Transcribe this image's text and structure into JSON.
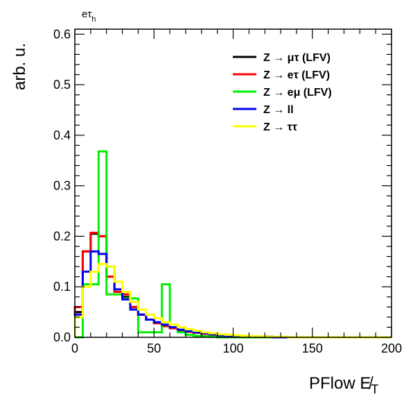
{
  "chart_data": {
    "type": "histogram",
    "channel_label": "eτ",
    "channel_sub": "h",
    "xlabel": "PFlow E̸",
    "xlabel_sub": "T",
    "ylabel": "arb. u.",
    "xlim": [
      0,
      200
    ],
    "ylim": [
      0,
      0.61
    ],
    "x_ticks": [
      0,
      50,
      100,
      150,
      200
    ],
    "x_tick_labels": [
      "0",
      "50",
      "100",
      "150",
      "200"
    ],
    "y_ticks": [
      0,
      0.1,
      0.2,
      0.3,
      0.4,
      0.5,
      0.6
    ],
    "y_tick_labels": [
      "0.0",
      "0.1",
      "0.2",
      "0.3",
      "0.4",
      "0.5",
      "0.6"
    ],
    "bin_edges": [
      0,
      5,
      10,
      15,
      20,
      25,
      30,
      35,
      40,
      45,
      50,
      55,
      60,
      65,
      70,
      75,
      80,
      85,
      90,
      95,
      100,
      105,
      110,
      115,
      120,
      125,
      130,
      135,
      140,
      145,
      150,
      155,
      160,
      165,
      170,
      175,
      180,
      185,
      190,
      195,
      200
    ],
    "legend_position": "top-right",
    "series": [
      {
        "name": "Z → μτ (LFV)",
        "color": "#000000",
        "values": [
          0.05,
          0.17,
          0.205,
          0.2,
          0.12,
          0.09,
          0.08,
          0.06,
          0.045,
          0.035,
          0.028,
          0.022,
          0.018,
          0.014,
          0.011,
          0.009,
          0.007,
          0.005,
          0.004,
          0.003,
          0.002,
          0.002,
          0.001,
          0.001,
          0.001,
          0,
          0,
          0,
          0,
          0,
          0,
          0,
          0,
          0,
          0,
          0,
          0,
          0,
          0,
          0
        ]
      },
      {
        "name": "Z → eτ (LFV)",
        "color": "#ff0000",
        "values": [
          0.06,
          0.17,
          0.207,
          0.2,
          0.12,
          0.09,
          0.085,
          0.06,
          0.045,
          0.035,
          0.028,
          0.022,
          0.018,
          0.014,
          0.011,
          0.009,
          0.007,
          0.005,
          0.004,
          0.003,
          0.002,
          0.002,
          0.001,
          0.001,
          0.001,
          0,
          0,
          0,
          0,
          0,
          0,
          0,
          0,
          0,
          0,
          0,
          0,
          0,
          0,
          0
        ]
      },
      {
        "name": "Z → eμ (LFV)",
        "color": "#00ee00",
        "values": [
          0,
          0.105,
          0.105,
          0.368,
          0.085,
          0.085,
          0.077,
          0.077,
          0.01,
          0.01,
          0.01,
          0.105,
          0.02,
          0.01,
          0.005,
          0.003,
          0.002,
          0.001,
          0,
          0,
          0,
          0,
          0,
          0,
          0,
          0,
          0,
          0,
          0,
          0,
          0,
          0,
          0,
          0,
          0,
          0,
          0,
          0,
          0,
          0
        ]
      },
      {
        "name": "Z → ll",
        "color": "#0000ee",
        "values": [
          0.045,
          0.13,
          0.17,
          0.165,
          0.14,
          0.095,
          0.075,
          0.055,
          0.045,
          0.035,
          0.03,
          0.025,
          0.02,
          0.015,
          0.012,
          0.01,
          0.008,
          0.006,
          0.004,
          0.003,
          0.002,
          0.002,
          0.001,
          0.001,
          0.001,
          0,
          0,
          0,
          0,
          0,
          0,
          0,
          0,
          0,
          0,
          0,
          0,
          0,
          0,
          0
        ]
      },
      {
        "name": "Z → ττ",
        "color": "#ffff00",
        "values": [
          0.04,
          0.1,
          0.13,
          0.145,
          0.14,
          0.11,
          0.09,
          0.07,
          0.055,
          0.045,
          0.038,
          0.03,
          0.025,
          0.02,
          0.016,
          0.013,
          0.01,
          0.008,
          0.006,
          0.005,
          0.004,
          0.003,
          0.002,
          0.002,
          0.001,
          0.001,
          0.001,
          0,
          0,
          0,
          0,
          0,
          0,
          0,
          0,
          0,
          0,
          0,
          0,
          0
        ]
      }
    ]
  }
}
